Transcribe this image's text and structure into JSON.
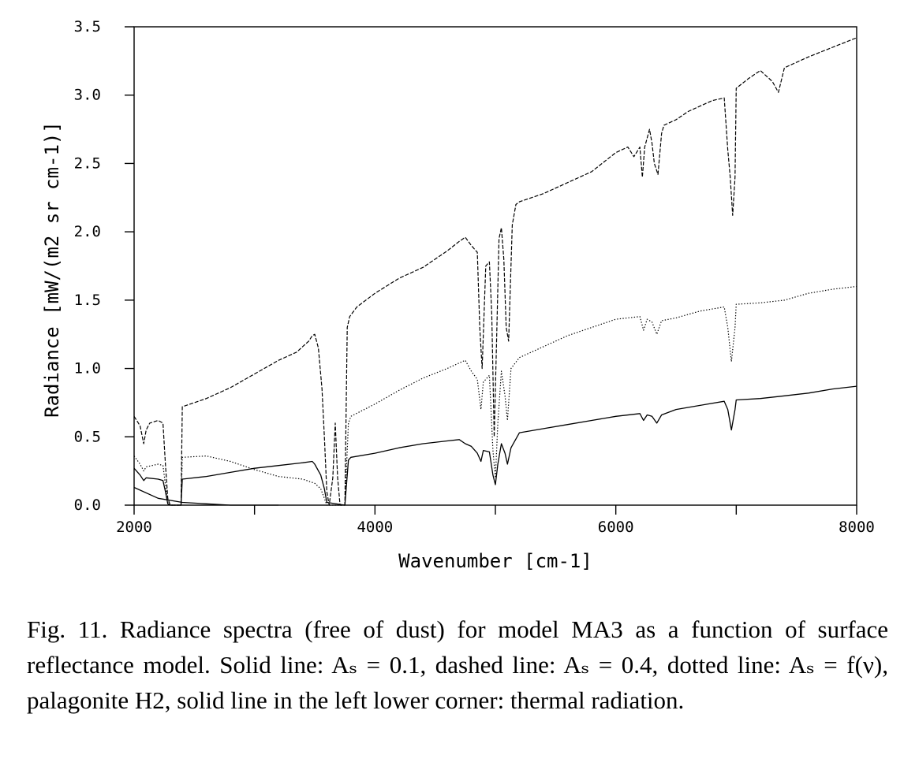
{
  "chart_data": {
    "type": "line",
    "xlabel": "Wavenumber [cm-1]",
    "ylabel": "Radiance [mW/(m2 sr cm-1)]",
    "xlim": [
      2000,
      8000
    ],
    "ylim": [
      0,
      3.5
    ],
    "x_ticks": [
      "2000",
      "4000",
      "6000",
      "8000"
    ],
    "y_ticks": [
      "0.0",
      "0.5",
      "1.0",
      "1.5",
      "2.0",
      "2.5",
      "3.0",
      "3.5"
    ],
    "grid": false,
    "series": [
      {
        "style": "dashed",
        "points": [
          [
            2000,
            0.65
          ],
          [
            2050,
            0.58
          ],
          [
            2080,
            0.45
          ],
          [
            2100,
            0.55
          ],
          [
            2130,
            0.6
          ],
          [
            2200,
            0.62
          ],
          [
            2240,
            0.6
          ],
          [
            2260,
            0.3
          ],
          [
            2280,
            0.05
          ],
          [
            2300,
            0.0
          ],
          [
            2390,
            0.0
          ],
          [
            2400,
            0.72
          ],
          [
            2600,
            0.78
          ],
          [
            2800,
            0.86
          ],
          [
            3000,
            0.96
          ],
          [
            3200,
            1.06
          ],
          [
            3350,
            1.12
          ],
          [
            3400,
            1.16
          ],
          [
            3450,
            1.2
          ],
          [
            3480,
            1.24
          ],
          [
            3500,
            1.25
          ],
          [
            3530,
            1.15
          ],
          [
            3560,
            0.85
          ],
          [
            3580,
            0.5
          ],
          [
            3600,
            0.1
          ],
          [
            3620,
            0.0
          ],
          [
            3650,
            0.2
          ],
          [
            3670,
            0.6
          ],
          [
            3690,
            0.2
          ],
          [
            3710,
            0.0
          ],
          [
            3750,
            0.0
          ],
          [
            3770,
            1.3
          ],
          [
            3790,
            1.38
          ],
          [
            3850,
            1.45
          ],
          [
            4000,
            1.55
          ],
          [
            4200,
            1.66
          ],
          [
            4400,
            1.74
          ],
          [
            4600,
            1.86
          ],
          [
            4700,
            1.93
          ],
          [
            4750,
            1.96
          ],
          [
            4800,
            1.9
          ],
          [
            4850,
            1.85
          ],
          [
            4870,
            1.3
          ],
          [
            4890,
            1.0
          ],
          [
            4920,
            1.75
          ],
          [
            4950,
            1.78
          ],
          [
            4970,
            1.4
          ],
          [
            4990,
            0.5
          ],
          [
            5010,
            1.2
          ],
          [
            5030,
            1.95
          ],
          [
            5050,
            2.03
          ],
          [
            5070,
            1.8
          ],
          [
            5090,
            1.3
          ],
          [
            5110,
            1.2
          ],
          [
            5140,
            2.05
          ],
          [
            5170,
            2.2
          ],
          [
            5200,
            2.22
          ],
          [
            5400,
            2.28
          ],
          [
            5600,
            2.36
          ],
          [
            5800,
            2.44
          ],
          [
            6000,
            2.58
          ],
          [
            6100,
            2.62
          ],
          [
            6150,
            2.55
          ],
          [
            6200,
            2.62
          ],
          [
            6220,
            2.4
          ],
          [
            6240,
            2.62
          ],
          [
            6280,
            2.75
          ],
          [
            6300,
            2.65
          ],
          [
            6320,
            2.5
          ],
          [
            6350,
            2.42
          ],
          [
            6380,
            2.72
          ],
          [
            6400,
            2.78
          ],
          [
            6500,
            2.82
          ],
          [
            6600,
            2.88
          ],
          [
            6700,
            2.92
          ],
          [
            6800,
            2.96
          ],
          [
            6900,
            2.98
          ],
          [
            6930,
            2.6
          ],
          [
            6950,
            2.4
          ],
          [
            6970,
            2.12
          ],
          [
            6990,
            2.4
          ],
          [
            7000,
            3.05
          ],
          [
            7100,
            3.12
          ],
          [
            7200,
            3.18
          ],
          [
            7300,
            3.1
          ],
          [
            7350,
            3.02
          ],
          [
            7400,
            3.2
          ],
          [
            7600,
            3.28
          ],
          [
            7800,
            3.35
          ],
          [
            8000,
            3.42
          ]
        ]
      },
      {
        "style": "dotted",
        "points": [
          [
            2000,
            0.36
          ],
          [
            2050,
            0.3
          ],
          [
            2080,
            0.25
          ],
          [
            2100,
            0.28
          ],
          [
            2200,
            0.3
          ],
          [
            2240,
            0.29
          ],
          [
            2260,
            0.15
          ],
          [
            2280,
            0.02
          ],
          [
            2300,
            0.0
          ],
          [
            2390,
            0.0
          ],
          [
            2400,
            0.35
          ],
          [
            2600,
            0.36
          ],
          [
            2800,
            0.32
          ],
          [
            3000,
            0.26
          ],
          [
            3200,
            0.21
          ],
          [
            3400,
            0.19
          ],
          [
            3500,
            0.16
          ],
          [
            3550,
            0.12
          ],
          [
            3580,
            0.05
          ],
          [
            3600,
            0.0
          ],
          [
            3750,
            0.0
          ],
          [
            3780,
            0.6
          ],
          [
            3800,
            0.65
          ],
          [
            4000,
            0.74
          ],
          [
            4200,
            0.84
          ],
          [
            4400,
            0.93
          ],
          [
            4600,
            1.0
          ],
          [
            4700,
            1.04
          ],
          [
            4750,
            1.06
          ],
          [
            4800,
            0.98
          ],
          [
            4850,
            0.92
          ],
          [
            4880,
            0.7
          ],
          [
            4900,
            0.9
          ],
          [
            4950,
            0.95
          ],
          [
            4980,
            0.4
          ],
          [
            5000,
            0.2
          ],
          [
            5020,
            0.6
          ],
          [
            5050,
            0.98
          ],
          [
            5080,
            0.8
          ],
          [
            5100,
            0.62
          ],
          [
            5130,
            1.0
          ],
          [
            5200,
            1.08
          ],
          [
            5400,
            1.16
          ],
          [
            5600,
            1.24
          ],
          [
            5800,
            1.3
          ],
          [
            6000,
            1.36
          ],
          [
            6200,
            1.38
          ],
          [
            6230,
            1.28
          ],
          [
            6260,
            1.36
          ],
          [
            6300,
            1.34
          ],
          [
            6340,
            1.25
          ],
          [
            6380,
            1.35
          ],
          [
            6500,
            1.37
          ],
          [
            6700,
            1.42
          ],
          [
            6900,
            1.45
          ],
          [
            6930,
            1.3
          ],
          [
            6960,
            1.05
          ],
          [
            6990,
            1.3
          ],
          [
            7000,
            1.47
          ],
          [
            7200,
            1.48
          ],
          [
            7400,
            1.5
          ],
          [
            7600,
            1.55
          ],
          [
            7800,
            1.58
          ],
          [
            8000,
            1.6
          ]
        ]
      },
      {
        "style": "solid",
        "points": [
          [
            2000,
            0.27
          ],
          [
            2050,
            0.22
          ],
          [
            2080,
            0.18
          ],
          [
            2100,
            0.2
          ],
          [
            2200,
            0.19
          ],
          [
            2240,
            0.18
          ],
          [
            2260,
            0.1
          ],
          [
            2280,
            0.01
          ],
          [
            2300,
            0.0
          ],
          [
            2390,
            0.0
          ],
          [
            2400,
            0.19
          ],
          [
            2600,
            0.21
          ],
          [
            2800,
            0.24
          ],
          [
            3000,
            0.27
          ],
          [
            3200,
            0.29
          ],
          [
            3400,
            0.31
          ],
          [
            3480,
            0.32
          ],
          [
            3500,
            0.3
          ],
          [
            3550,
            0.22
          ],
          [
            3580,
            0.12
          ],
          [
            3600,
            0.02
          ],
          [
            3750,
            0.0
          ],
          [
            3780,
            0.33
          ],
          [
            3800,
            0.35
          ],
          [
            4000,
            0.38
          ],
          [
            4200,
            0.42
          ],
          [
            4400,
            0.45
          ],
          [
            4600,
            0.47
          ],
          [
            4700,
            0.48
          ],
          [
            4750,
            0.45
          ],
          [
            4800,
            0.43
          ],
          [
            4850,
            0.38
          ],
          [
            4880,
            0.32
          ],
          [
            4900,
            0.4
          ],
          [
            4950,
            0.39
          ],
          [
            4980,
            0.22
          ],
          [
            5000,
            0.15
          ],
          [
            5020,
            0.3
          ],
          [
            5050,
            0.45
          ],
          [
            5080,
            0.38
          ],
          [
            5100,
            0.3
          ],
          [
            5130,
            0.42
          ],
          [
            5200,
            0.53
          ],
          [
            5400,
            0.56
          ],
          [
            5600,
            0.59
          ],
          [
            5800,
            0.62
          ],
          [
            6000,
            0.65
          ],
          [
            6200,
            0.67
          ],
          [
            6230,
            0.62
          ],
          [
            6260,
            0.66
          ],
          [
            6300,
            0.65
          ],
          [
            6340,
            0.6
          ],
          [
            6380,
            0.66
          ],
          [
            6500,
            0.7
          ],
          [
            6700,
            0.73
          ],
          [
            6900,
            0.76
          ],
          [
            6930,
            0.7
          ],
          [
            6960,
            0.55
          ],
          [
            6990,
            0.7
          ],
          [
            7000,
            0.77
          ],
          [
            7200,
            0.78
          ],
          [
            7400,
            0.8
          ],
          [
            7600,
            0.82
          ],
          [
            7800,
            0.85
          ],
          [
            8000,
            0.87
          ]
        ]
      },
      {
        "style": "solid",
        "points": [
          [
            2000,
            0.13
          ],
          [
            2200,
            0.05
          ],
          [
            2400,
            0.02
          ],
          [
            2600,
            0.01
          ],
          [
            2800,
            0.0
          ],
          [
            3000,
            0.0
          ],
          [
            3200,
            0.0
          ]
        ]
      }
    ]
  },
  "caption": "Fig. 11. Radiance spectra (free of dust) for model MA3 as a function of surface reflectance model. Solid line: Aₛ = 0.1, dashed line: Aₛ = 0.4, dotted line: Aₛ = f(ν), palagonite H2, solid line in the left lower corner: thermal radiation."
}
